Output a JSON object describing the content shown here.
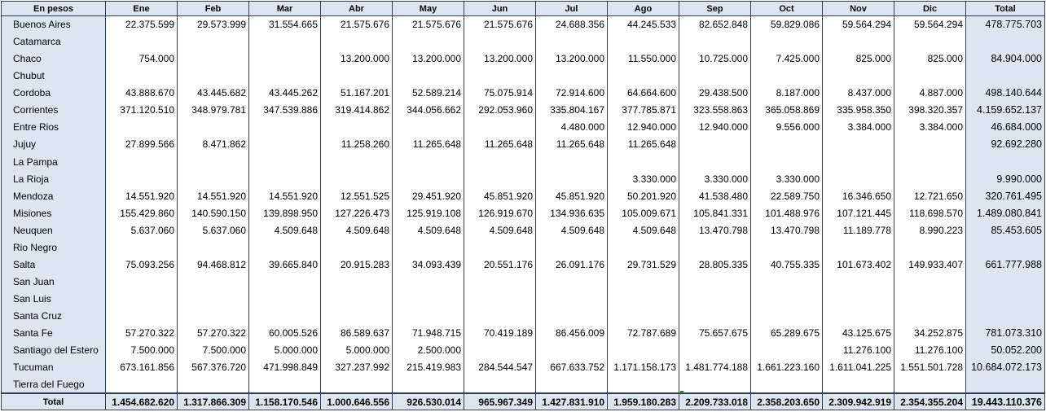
{
  "header": {
    "corner_label": "En pesos",
    "months": [
      "Ene",
      "Feb",
      "Mar",
      "Abr",
      "May",
      "Jun",
      "Jul",
      "Ago",
      "Sep",
      "Oct",
      "Nov",
      "Dic"
    ],
    "total_label": "Total"
  },
  "rows": [
    {
      "province": "Buenos Aires",
      "values": [
        "22.375.599",
        "29.573.999",
        "31.554.665",
        "21.575.676",
        "21.575.676",
        "21.575.676",
        "24.688.356",
        "44.245.533",
        "82.652.848",
        "59.829.086",
        "59.564.294",
        "59.564.294"
      ],
      "total": "478.775.703"
    },
    {
      "province": "Catamarca",
      "values": [
        "",
        "",
        "",
        "",
        "",
        "",
        "",
        "",
        "",
        "",
        "",
        ""
      ],
      "total": ""
    },
    {
      "province": "Chaco",
      "values": [
        "754.000",
        "",
        "",
        "13.200.000",
        "13.200.000",
        "13.200.000",
        "13.200.000",
        "11.550.000",
        "10.725.000",
        "7.425.000",
        "825.000",
        "825.000"
      ],
      "total": "84.904.000"
    },
    {
      "province": "Chubut",
      "values": [
        "",
        "",
        "",
        "",
        "",
        "",
        "",
        "",
        "",
        "",
        "",
        ""
      ],
      "total": ""
    },
    {
      "province": "Cordoba",
      "values": [
        "43.888.670",
        "43.445.682",
        "43.445.262",
        "51.167.201",
        "52.589.214",
        "75.075.914",
        "72.914.600",
        "64.664.600",
        "29.438.500",
        "8.187.000",
        "8.437.000",
        "4.887.000"
      ],
      "total": "498.140.644"
    },
    {
      "province": "Corrientes",
      "values": [
        "371.120.510",
        "348.979.781",
        "347.539.886",
        "319.414.862",
        "344.056.662",
        "292.053.960",
        "335.804.167",
        "377.785.871",
        "323.558.863",
        "365.058.869",
        "335.958.350",
        "398.320.357"
      ],
      "total": "4.159.652.137"
    },
    {
      "province": "Entre Rios",
      "values": [
        "",
        "",
        "",
        "",
        "",
        "",
        "4.480.000",
        "12.940.000",
        "12.940.000",
        "9.556.000",
        "3.384.000",
        "3.384.000"
      ],
      "total": "46.684.000"
    },
    {
      "province": "Jujuy",
      "values": [
        "27.899.566",
        "8.471.862",
        "",
        "11.258.260",
        "11.265.648",
        "11.265.648",
        "11.265.648",
        "11.265.648",
        "",
        "",
        "",
        ""
      ],
      "total": "92.692.280"
    },
    {
      "province": "La Pampa",
      "values": [
        "",
        "",
        "",
        "",
        "",
        "",
        "",
        "",
        "",
        "",
        "",
        ""
      ],
      "total": ""
    },
    {
      "province": "La Rioja",
      "values": [
        "",
        "",
        "",
        "",
        "",
        "",
        "",
        "3.330.000",
        "3.330.000",
        "3.330.000",
        "",
        ""
      ],
      "total": "9.990.000"
    },
    {
      "province": "Mendoza",
      "values": [
        "14.551.920",
        "14.551.920",
        "14.551.920",
        "12.551.525",
        "29.451.920",
        "45.851.920",
        "45.851.920",
        "50.201.920",
        "41.538.480",
        "22.589.750",
        "16.346.650",
        "12.721.650"
      ],
      "total": "320.761.495"
    },
    {
      "province": "Misiones",
      "values": [
        "155.429.860",
        "140.590.150",
        "139.898.950",
        "127.226.473",
        "125.919.108",
        "126.919.670",
        "134.936.635",
        "105.009.671",
        "105.841.331",
        "101.488.976",
        "107.121.445",
        "118.698.570"
      ],
      "total": "1.489.080.841"
    },
    {
      "province": "Neuquen",
      "values": [
        "5.637.060",
        "5.637.060",
        "4.509.648",
        "4.509.648",
        "4.509.648",
        "4.509.648",
        "4.509.648",
        "4.509.648",
        "13.470.798",
        "13.470.798",
        "11.189.778",
        "8.990.223"
      ],
      "total": "85.453.605"
    },
    {
      "province": "Rio Negro",
      "values": [
        "",
        "",
        "",
        "",
        "",
        "",
        "",
        "",
        "",
        "",
        "",
        ""
      ],
      "total": ""
    },
    {
      "province": "Salta",
      "values": [
        "75.093.256",
        "94.468.812",
        "39.665.840",
        "20.915.283",
        "34.093.439",
        "20.551.176",
        "26.091.176",
        "29.731.529",
        "28.805.335",
        "40.755.335",
        "101.673.402",
        "149.933.407"
      ],
      "total": "661.777.988"
    },
    {
      "province": "San Juan",
      "values": [
        "",
        "",
        "",
        "",
        "",
        "",
        "",
        "",
        "",
        "",
        "",
        ""
      ],
      "total": ""
    },
    {
      "province": "San Luis",
      "values": [
        "",
        "",
        "",
        "",
        "",
        "",
        "",
        "",
        "",
        "",
        "",
        ""
      ],
      "total": ""
    },
    {
      "province": "Santa Cruz",
      "values": [
        "",
        "",
        "",
        "",
        "",
        "",
        "",
        "",
        "",
        "",
        "",
        ""
      ],
      "total": ""
    },
    {
      "province": "Santa Fe",
      "values": [
        "57.270.322",
        "57.270.322",
        "60.005.526",
        "86.589.637",
        "71.948.715",
        "70.419.189",
        "86.456.009",
        "72.787.689",
        "75.657.675",
        "65.289.675",
        "43.125.675",
        "34.252.875"
      ],
      "total": "781.073.310"
    },
    {
      "province": "Santiago del Estero",
      "values": [
        "7.500.000",
        "7.500.000",
        "5.000.000",
        "5.000.000",
        "2.500.000",
        "",
        "",
        "",
        "",
        "",
        "11.276.100",
        "11.276.100"
      ],
      "total": "50.052.200"
    },
    {
      "province": "Tucuman",
      "values": [
        "673.161.856",
        "567.376.720",
        "471.998.849",
        "327.237.992",
        "215.419.983",
        "284.544.547",
        "667.633.752",
        "1.171.158.173",
        "1.481.774.188",
        "1.661.223.160",
        "1.611.041.225",
        "1.551.501.728"
      ],
      "total": "10.684.072.173"
    },
    {
      "province": "Tierra del Fuego",
      "values": [
        "",
        "",
        "",
        "",
        "",
        "",
        "",
        "",
        "",
        "",
        "",
        ""
      ],
      "total": ""
    }
  ],
  "footer": {
    "label": "Total",
    "values": [
      "1.454.682.620",
      "1.317.866.309",
      "1.158.170.546",
      "1.000.646.556",
      "926.530.014",
      "965.967.349",
      "1.427.831.910",
      "1.959.180.283",
      "2.209.733.018",
      "2.358.203.650",
      "2.309.942.919",
      "2.354.355.204"
    ],
    "total": "19.443.110.376"
  },
  "colors": {
    "header_fill": "#dce6f1",
    "grid_border": "#2f3d5c",
    "cell_fill": "#ffffff",
    "comment_marker": "#1f7f2f"
  }
}
